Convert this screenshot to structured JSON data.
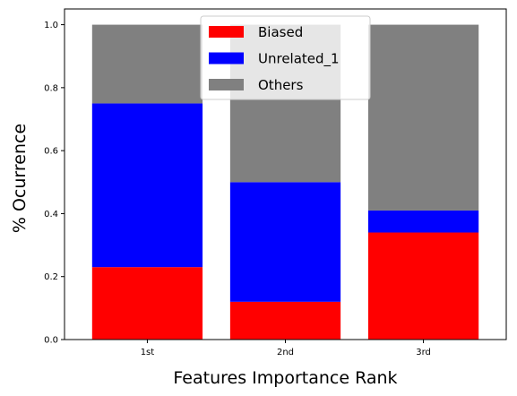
{
  "chart_data": {
    "type": "bar",
    "stacked": true,
    "title": "",
    "xlabel": "Features Importance Rank",
    "ylabel": "% Ocurrence",
    "categories": [
      "1st",
      "2nd",
      "3rd"
    ],
    "series": [
      {
        "name": "Biased",
        "color": "#ff0000",
        "values": [
          0.23,
          0.12,
          0.34
        ]
      },
      {
        "name": "Unrelated_1",
        "color": "#0000ff",
        "values": [
          0.52,
          0.38,
          0.07
        ]
      },
      {
        "name": "Others",
        "color": "#808080",
        "values": [
          0.25,
          0.5,
          0.59
        ]
      }
    ],
    "ylim": [
      0,
      1.05
    ],
    "yticks": [
      "0.0",
      "0.2",
      "0.4",
      "0.6",
      "0.8",
      "1.0"
    ],
    "legend_position": "top-center",
    "grid": false
  }
}
